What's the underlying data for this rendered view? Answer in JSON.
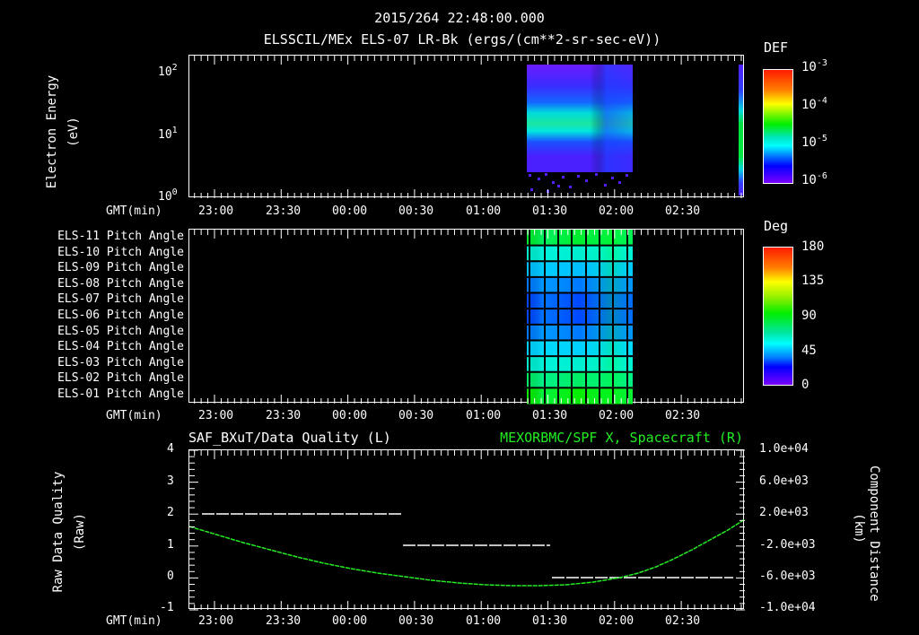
{
  "header": {
    "timestamp": "2015/264 22:48:00.000",
    "subtitle": "ELSSCIL/MEx ELS-07 LR-Bk  (ergs/(cm**2-sr-sec-eV))"
  },
  "time_axis": {
    "label": "GMT(min)",
    "ticks": [
      "23:00",
      "23:30",
      "00:00",
      "00:30",
      "01:00",
      "01:30",
      "02:00",
      "02:30"
    ]
  },
  "panel1": {
    "ylabel": "Electron Energy",
    "yunit": "(eV)",
    "yticks": [
      {
        "base": "10",
        "exp": "2"
      },
      {
        "base": "10",
        "exp": "1"
      },
      {
        "base": "10",
        "exp": "0"
      }
    ],
    "colorbar": {
      "title": "DEF",
      "ticks": [
        {
          "base": "10",
          "exp": "-3"
        },
        {
          "base": "10",
          "exp": "-4"
        },
        {
          "base": "10",
          "exp": "-5"
        },
        {
          "base": "10",
          "exp": "-6"
        }
      ]
    }
  },
  "panel2": {
    "row_labels": [
      "ELS-11 Pitch Angle",
      "ELS-10 Pitch Angle",
      "ELS-09 Pitch Angle",
      "ELS-08 Pitch Angle",
      "ELS-07 Pitch Angle",
      "ELS-06 Pitch Angle",
      "ELS-05 Pitch Angle",
      "ELS-04 Pitch Angle",
      "ELS-03 Pitch Angle",
      "ELS-02 Pitch Angle",
      "ELS-01 Pitch Angle"
    ],
    "colorbar": {
      "title": "Deg",
      "ticks": [
        "180",
        "135",
        "90",
        "45",
        "0"
      ]
    }
  },
  "panel3": {
    "left_title": "SAF_BXuT/Data Quality (L)",
    "right_title": "MEXORBMC/SPF X, Spacecraft (R)",
    "right_title_color": "#22ee22",
    "ylabel_left": "Raw Data Quality",
    "yunit_left": "(Raw)",
    "yticks_left": [
      "4",
      "3",
      "2",
      "1",
      "0",
      "-1"
    ],
    "ylabel_right": "Component Distance",
    "yunit_right": "(km)",
    "yticks_right": [
      "1.0e+04",
      "6.0e+03",
      "2.0e+03",
      "-2.0e+03",
      "-6.0e+03",
      "-1.0e+04"
    ]
  },
  "chart_data": [
    {
      "type": "heatmap",
      "title": "ELSSCIL/MEx ELS-07 LR-Bk (ergs/(cm**2-sr-sec-eV))",
      "xlabel": "GMT(min)",
      "ylabel": "Electron Energy (eV)",
      "yscale": "log",
      "ylim": [
        1,
        150
      ],
      "x_ticks": [
        "23:00",
        "23:30",
        "00:00",
        "00:30",
        "01:00",
        "01:30",
        "02:00",
        "02:30"
      ],
      "colorbar": {
        "label": "DEF",
        "scale": "log",
        "range": [
          1e-06,
          0.001
        ]
      },
      "data_intervals": [
        {
          "start": "01:18",
          "end": "02:05",
          "peak_energy_eV": 12,
          "peak_DEF": 5e-05
        },
        {
          "start": "02:56",
          "end": "02:58",
          "peak_energy_eV": 8,
          "peak_DEF": 0.0001
        }
      ]
    },
    {
      "type": "heatmap",
      "title": "ELS Pitch Angle",
      "xlabel": "GMT(min)",
      "categories": [
        "ELS-11",
        "ELS-10",
        "ELS-09",
        "ELS-08",
        "ELS-07",
        "ELS-06",
        "ELS-05",
        "ELS-04",
        "ELS-03",
        "ELS-02",
        "ELS-01"
      ],
      "colorbar": {
        "label": "Deg",
        "range": [
          0,
          180
        ],
        "ticks": [
          0,
          45,
          90,
          135,
          180
        ]
      },
      "data_interval": {
        "start": "01:18",
        "end": "02:05"
      },
      "approx_values_deg": [
        95,
        80,
        70,
        62,
        55,
        55,
        62,
        72,
        80,
        90,
        100
      ]
    },
    {
      "type": "line",
      "title_left": "SAF_BXuT/Data Quality (L)",
      "title_right": "MEXORBMC/SPF X, Spacecraft (R)",
      "xlabel": "GMT(min)",
      "x_ticks": [
        "23:00",
        "23:30",
        "00:00",
        "00:30",
        "01:00",
        "01:30",
        "02:00",
        "02:30"
      ],
      "series": [
        {
          "name": "Data Quality (Raw)",
          "axis": "left",
          "color": "#ffffff",
          "style": "dashed",
          "segments": [
            {
              "start": "22:55",
              "end": "00:20",
              "value": 2
            },
            {
              "start": "00:20",
              "end": "01:29",
              "value": 1
            },
            {
              "start": "01:29",
              "end": "02:45",
              "value": 0
            }
          ]
        },
        {
          "name": "SPF X Spacecraft (km)",
          "axis": "right",
          "color": "#22ee22",
          "x": [
            "22:48",
            "23:00",
            "23:30",
            "00:00",
            "00:30",
            "01:00",
            "01:30",
            "02:00",
            "02:30",
            "02:58"
          ],
          "values": [
            1000,
            300,
            -1500,
            -3300,
            -5000,
            -6100,
            -6300,
            -5500,
            -2000,
            2000
          ]
        }
      ],
      "ylim_left": [
        -1,
        4
      ],
      "ylim_right": [
        -10000,
        10000
      ]
    }
  ]
}
